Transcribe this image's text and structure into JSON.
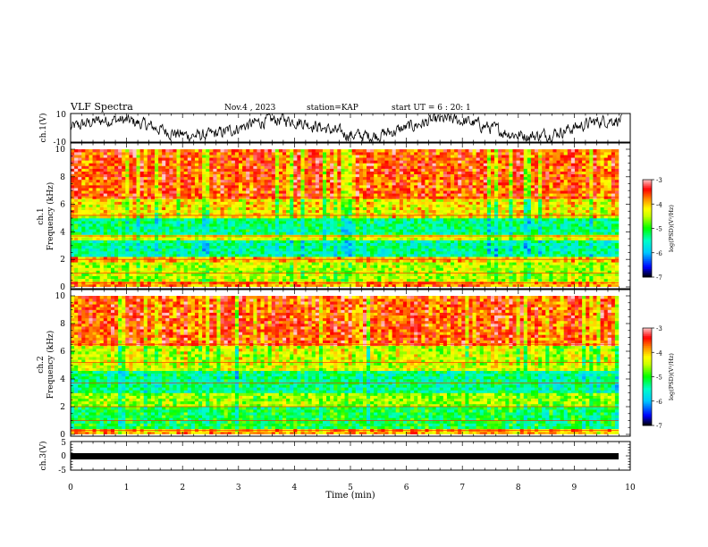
{
  "header": {
    "title": "VLF Spectra",
    "date": "Nov.4 , 2023",
    "station": "station=KAP",
    "start": "start UT = 6 : 20: 1"
  },
  "colorbar": {
    "label": "log(PSD)(V²/Hz)",
    "ticks": [
      "-3",
      "-4",
      "-5",
      "-6",
      "-7"
    ],
    "colors": [
      "#ff0000",
      "#ff8c00",
      "#ffff00",
      "#00ff00",
      "#00ffff",
      "#0000ff",
      "#000000"
    ]
  },
  "chart_data": [
    {
      "type": "line",
      "panel": "ch1-waveform",
      "ylabel": "ch.1(V)",
      "ylim": [
        -10,
        10
      ],
      "yticks": [
        "10",
        "-10"
      ],
      "xlim": [
        0,
        10
      ],
      "note_values": "noisy waveform roughly oscillating around 0 V with amplitude ~5 V"
    },
    {
      "type": "heatmap",
      "panel": "ch1-spectrogram",
      "ylabel_line1": "ch.1",
      "ylabel_line2": "Frequency (kHz)",
      "ylim": [
        0,
        10
      ],
      "yticks": [
        "0",
        "2",
        "4",
        "6",
        "8",
        "10"
      ],
      "xlim": [
        0,
        9.85
      ],
      "zlim": [
        -7,
        -3
      ],
      "bands": [
        {
          "f0": 0,
          "f1": 0.4,
          "level": -3.8
        },
        {
          "f0": 0.4,
          "f1": 1.8,
          "level": -4.5
        },
        {
          "f0": 1.8,
          "f1": 2.2,
          "level": -4.0
        },
        {
          "f0": 2.2,
          "f1": 3.4,
          "level": -5.4
        },
        {
          "f0": 3.4,
          "f1": 3.8,
          "level": -4.3
        },
        {
          "f0": 3.8,
          "f1": 5.0,
          "level": -5.3
        },
        {
          "f0": 5.0,
          "f1": 6.5,
          "level": -4.2
        },
        {
          "f0": 6.5,
          "f1": 10,
          "level": -3.6
        }
      ]
    },
    {
      "type": "heatmap",
      "panel": "ch2-spectrogram",
      "ylabel_line1": "ch.2",
      "ylabel_line2": "Frequency (kHz)",
      "ylim": [
        0,
        10
      ],
      "yticks": [
        "0",
        "2",
        "4",
        "6",
        "8",
        "10"
      ],
      "xlim": [
        0,
        9.85
      ],
      "zlim": [
        -7,
        -3
      ],
      "bands": [
        {
          "f0": 0,
          "f1": 0.4,
          "level": -3.9
        },
        {
          "f0": 0.4,
          "f1": 2.0,
          "level": -5.1
        },
        {
          "f0": 2.0,
          "f1": 3.0,
          "level": -4.6
        },
        {
          "f0": 3.0,
          "f1": 4.6,
          "level": -5.3
        },
        {
          "f0": 4.6,
          "f1": 6.5,
          "level": -4.4
        },
        {
          "f0": 6.5,
          "f1": 10,
          "level": -3.6
        }
      ]
    },
    {
      "type": "line",
      "panel": "ch3-waveform",
      "ylabel": "ch.3(V)",
      "ylim": [
        -5,
        5
      ],
      "yticks": [
        "5",
        "0",
        "-5"
      ],
      "xlim": [
        0,
        10
      ],
      "xticks": [
        "0",
        "1",
        "2",
        "3",
        "4",
        "5",
        "6",
        "7",
        "8",
        "9",
        "10"
      ],
      "xlabel": "Time (min)",
      "level": 0,
      "note_values": "flat dense signal centred at 0 V, about ±0.5 V"
    }
  ]
}
